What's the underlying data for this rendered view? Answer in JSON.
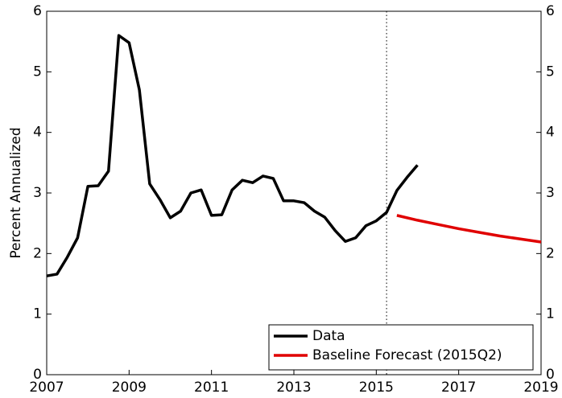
{
  "chart_data": {
    "type": "line",
    "ylabel": "Percent Annualized",
    "xlim": [
      2007,
      2019
    ],
    "xticks": [
      2007,
      2009,
      2011,
      2013,
      2015,
      2017,
      2019
    ],
    "ylim": [
      0,
      6
    ],
    "yticks": [
      0,
      1,
      2,
      3,
      4,
      5,
      6
    ],
    "y2lim": [
      0,
      6
    ],
    "y2ticks": [
      0,
      1,
      2,
      3,
      4,
      5,
      6
    ],
    "vline": 2015.25,
    "legend": "lower right",
    "series": [
      {
        "name": "Data",
        "color": "#000000",
        "x": [
          2007,
          2007.25,
          2007.5,
          2007.75,
          2008,
          2008.25,
          2008.5,
          2008.75,
          2009,
          2009.25,
          2009.5,
          2009.75,
          2010,
          2010.25,
          2010.5,
          2010.75,
          2011,
          2011.25,
          2011.5,
          2011.75,
          2012,
          2012.25,
          2012.5,
          2012.75,
          2013,
          2013.25,
          2013.5,
          2013.75,
          2014,
          2014.25,
          2014.5,
          2014.75,
          2015,
          2015.25,
          2015.5,
          2015.75,
          2016
        ],
        "values": [
          1.63,
          1.66,
          1.94,
          2.26,
          3.11,
          3.12,
          3.36,
          5.6,
          5.48,
          4.7,
          3.15,
          2.89,
          2.59,
          2.7,
          3.0,
          3.05,
          2.63,
          2.64,
          3.05,
          3.21,
          3.17,
          3.28,
          3.24,
          2.87,
          2.87,
          2.84,
          2.7,
          2.6,
          2.38,
          2.2,
          2.26,
          2.46,
          2.54,
          2.68,
          3.04,
          3.26,
          3.46
        ]
      },
      {
        "name": "Baseline Forecast (2015Q2)",
        "color": "#e00000",
        "x": [
          2015.5,
          2016,
          2016.5,
          2017,
          2017.5,
          2018,
          2018.5,
          2019
        ],
        "values": [
          2.63,
          2.55,
          2.48,
          2.41,
          2.35,
          2.29,
          2.24,
          2.19
        ]
      }
    ]
  }
}
